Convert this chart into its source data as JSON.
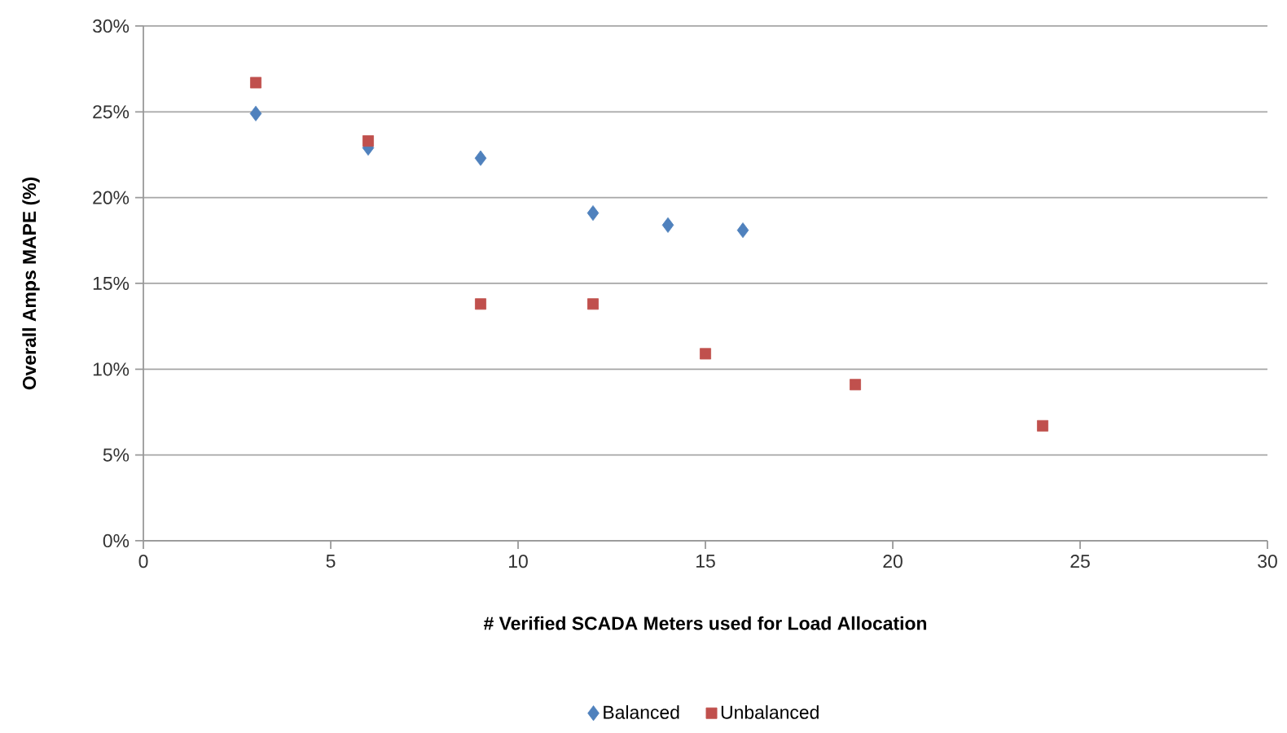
{
  "chart_data": {
    "type": "scatter",
    "xlabel": "# Verified SCADA Meters used for Load Allocation",
    "ylabel": "Overall Amps MAPE (%)",
    "series": [
      {
        "name": "Balanced",
        "color": "#4f81bd",
        "marker": "diamond",
        "x": [
          3,
          6,
          9,
          12,
          14,
          16
        ],
        "values": [
          24.9,
          22.9,
          22.3,
          19.1,
          18.4,
          18.1
        ]
      },
      {
        "name": "Unbalanced",
        "color": "#c0504d",
        "marker": "square",
        "x": [
          3,
          6,
          9,
          12,
          15,
          19,
          24
        ],
        "values": [
          26.7,
          23.3,
          13.8,
          13.8,
          10.9,
          9.1,
          6.7
        ]
      }
    ],
    "xlim": [
      0,
      30
    ],
    "xticks": [
      0,
      5,
      10,
      15,
      20,
      25,
      30
    ],
    "ylim": [
      0,
      30
    ],
    "yticks": [
      {
        "value": 0,
        "label": "0%"
      },
      {
        "value": 5,
        "label": "5%"
      },
      {
        "value": 10,
        "label": "10%"
      },
      {
        "value": 15,
        "label": "15%"
      },
      {
        "value": 20,
        "label": "20%"
      },
      {
        "value": 25,
        "label": "25%"
      },
      {
        "value": 30,
        "label": "30%"
      }
    ],
    "grid": "y",
    "legend": "bottom"
  }
}
